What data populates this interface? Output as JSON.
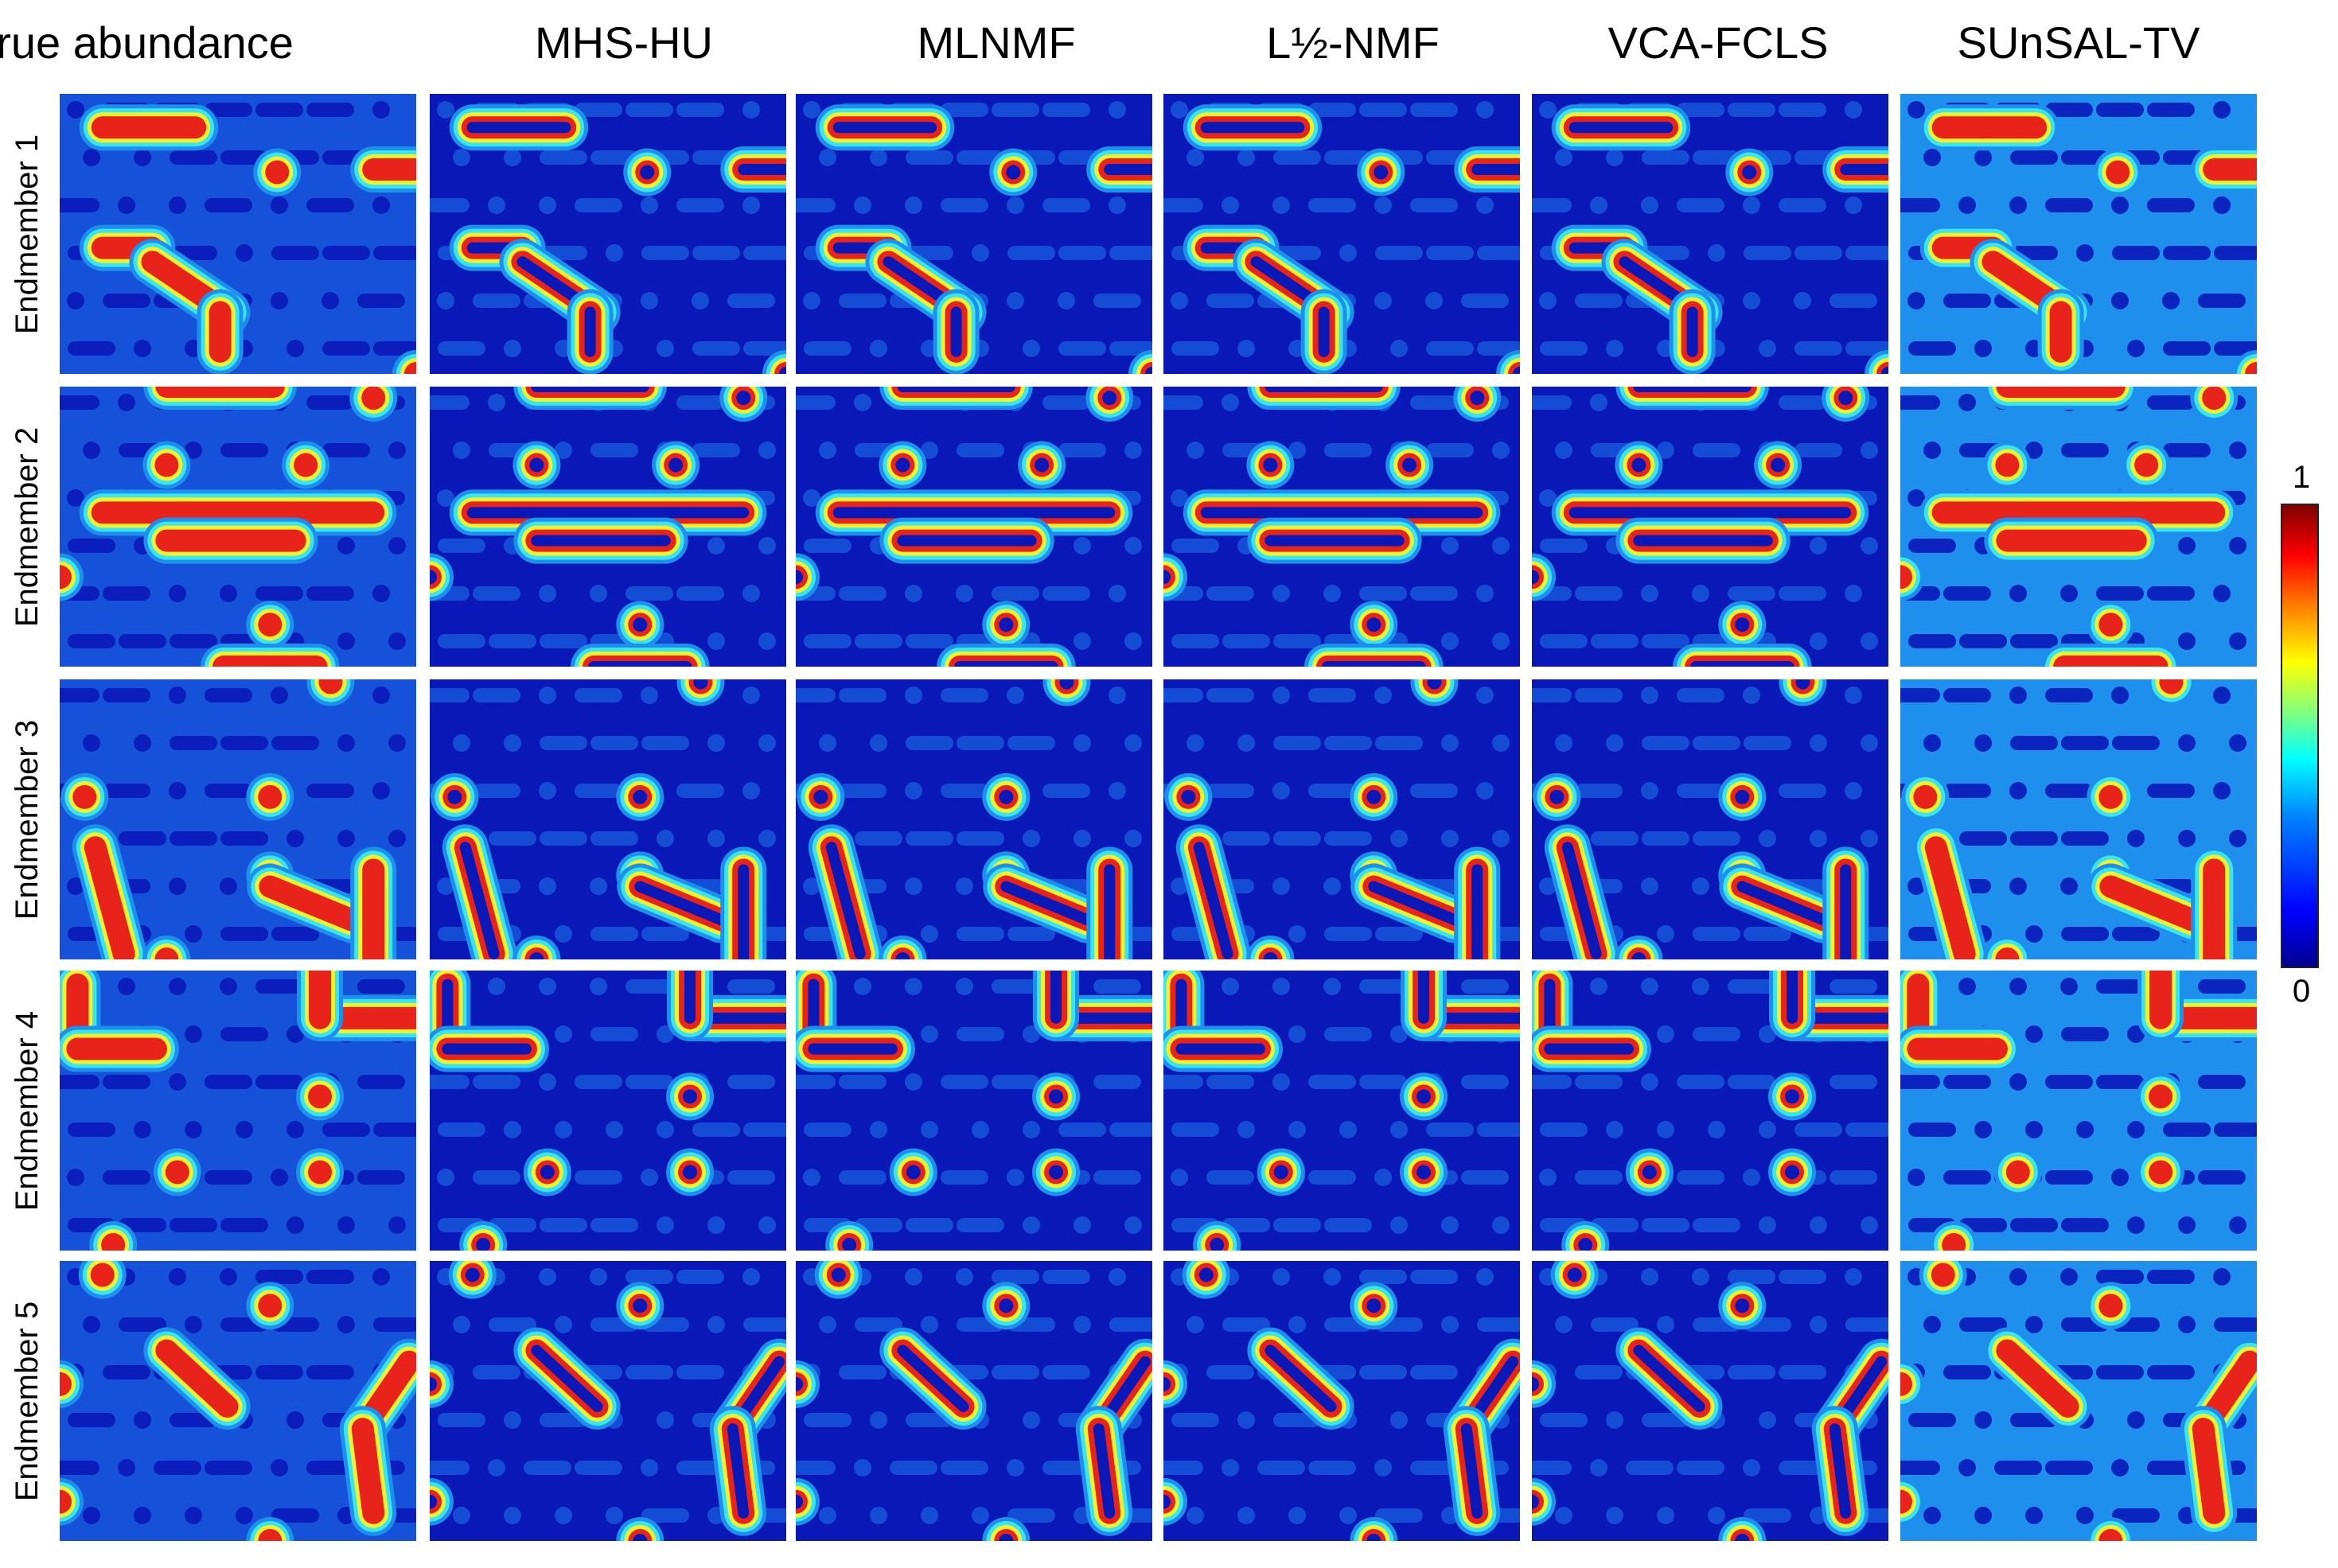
{
  "columns": [
    "True abundance",
    "MHS-HU",
    "MLNMF",
    "L½-NMF",
    "VCA-FCLS",
    "SUnSAL-TV"
  ],
  "rows": [
    "Endmember 1",
    "Endmember 2",
    "Endmember 3",
    "Endmember 4",
    "Endmember 5"
  ],
  "colorbar": {
    "max_label": "1",
    "min_label": "0",
    "colormap": "jet"
  },
  "colors": {
    "deep_blue": "#0a18b8",
    "background_blue": "#1552d9",
    "mid_blue": "#1f8fee",
    "cyan": "#39e6ef",
    "yellow": "#f3f22a",
    "red": "#e8231c",
    "dark_red": "#8c0000"
  },
  "abundance_maps": [
    {
      "endmember": "Endmember 1",
      "shapes": [
        {
          "type": "bar",
          "a": [
            0.12,
            0.12
          ],
          "b": [
            0.38,
            0.12
          ]
        },
        {
          "type": "bar",
          "a": [
            0.88,
            0.27
          ],
          "b": [
            1.02,
            0.27
          ]
        },
        {
          "type": "dot",
          "c": [
            0.61,
            0.28
          ]
        },
        {
          "type": "bar",
          "a": [
            0.12,
            0.55
          ],
          "b": [
            0.26,
            0.55
          ]
        },
        {
          "type": "bar",
          "a": [
            0.26,
            0.6
          ],
          "b": [
            0.47,
            0.78
          ]
        },
        {
          "type": "bar",
          "a": [
            0.45,
            0.78
          ],
          "b": [
            0.45,
            0.92
          ]
        },
        {
          "type": "dot",
          "c": [
            1.0,
            1.0
          ]
        }
      ]
    },
    {
      "endmember": "Endmember 2",
      "shapes": [
        {
          "type": "bar",
          "a": [
            0.3,
            0.0
          ],
          "b": [
            0.6,
            0.0
          ]
        },
        {
          "type": "dot",
          "c": [
            0.88,
            0.04
          ]
        },
        {
          "type": "dot",
          "c": [
            0.3,
            0.28
          ]
        },
        {
          "type": "dot",
          "c": [
            0.69,
            0.28
          ]
        },
        {
          "type": "bar",
          "a": [
            0.12,
            0.45
          ],
          "b": [
            0.88,
            0.45
          ]
        },
        {
          "type": "bar",
          "a": [
            0.3,
            0.55
          ],
          "b": [
            0.66,
            0.55
          ]
        },
        {
          "type": "dot",
          "c": [
            0.0,
            0.68
          ]
        },
        {
          "type": "dot",
          "c": [
            0.59,
            0.85
          ]
        },
        {
          "type": "bar",
          "a": [
            0.46,
            1.0
          ],
          "b": [
            0.72,
            1.0
          ]
        }
      ]
    },
    {
      "endmember": "Endmember 3",
      "shapes": [
        {
          "type": "dot",
          "c": [
            0.76,
            0.01
          ]
        },
        {
          "type": "dot",
          "c": [
            0.07,
            0.42
          ]
        },
        {
          "type": "dot",
          "c": [
            0.59,
            0.42
          ]
        },
        {
          "type": "bar",
          "a": [
            0.1,
            0.6
          ],
          "b": [
            0.18,
            0.98
          ]
        },
        {
          "type": "dot",
          "c": [
            0.59,
            0.7
          ]
        },
        {
          "type": "bar",
          "a": [
            0.59,
            0.74
          ],
          "b": [
            0.82,
            0.86
          ]
        },
        {
          "type": "bar",
          "a": [
            0.88,
            0.68
          ],
          "b": [
            0.88,
            1.0
          ]
        },
        {
          "type": "dot",
          "c": [
            0.3,
            1.0
          ]
        }
      ]
    },
    {
      "endmember": "Endmember 4",
      "shapes": [
        {
          "type": "bar",
          "a": [
            0.0,
            0.05
          ],
          "b": [
            0.05,
            0.05
          ]
        },
        {
          "type": "bar",
          "a": [
            0.05,
            0.05
          ],
          "b": [
            0.05,
            0.28
          ]
        },
        {
          "type": "bar",
          "a": [
            0.05,
            0.28
          ],
          "b": [
            0.27,
            0.28
          ]
        },
        {
          "type": "bar",
          "a": [
            0.73,
            0.17
          ],
          "b": [
            1.02,
            0.17
          ]
        },
        {
          "type": "bar",
          "a": [
            0.73,
            0.17
          ],
          "b": [
            0.73,
            0.0
          ]
        },
        {
          "type": "dot",
          "c": [
            0.73,
            0.45
          ]
        },
        {
          "type": "dot",
          "c": [
            0.33,
            0.72
          ]
        },
        {
          "type": "dot",
          "c": [
            0.73,
            0.72
          ]
        },
        {
          "type": "dot",
          "c": [
            0.15,
            0.98
          ]
        }
      ]
    },
    {
      "endmember": "Endmember 5",
      "shapes": [
        {
          "type": "dot",
          "c": [
            0.12,
            0.05
          ]
        },
        {
          "type": "dot",
          "c": [
            0.59,
            0.16
          ]
        },
        {
          "type": "bar",
          "a": [
            0.3,
            0.32
          ],
          "b": [
            0.47,
            0.52
          ]
        },
        {
          "type": "dot",
          "c": [
            0.0,
            0.44
          ]
        },
        {
          "type": "bar",
          "a": [
            0.98,
            0.36
          ],
          "b": [
            0.85,
            0.6
          ]
        },
        {
          "type": "bar",
          "a": [
            0.85,
            0.6
          ],
          "b": [
            0.88,
            0.9
          ]
        },
        {
          "type": "dot",
          "c": [
            0.0,
            0.86
          ]
        },
        {
          "type": "dot",
          "c": [
            0.59,
            1.0
          ]
        }
      ]
    }
  ]
}
